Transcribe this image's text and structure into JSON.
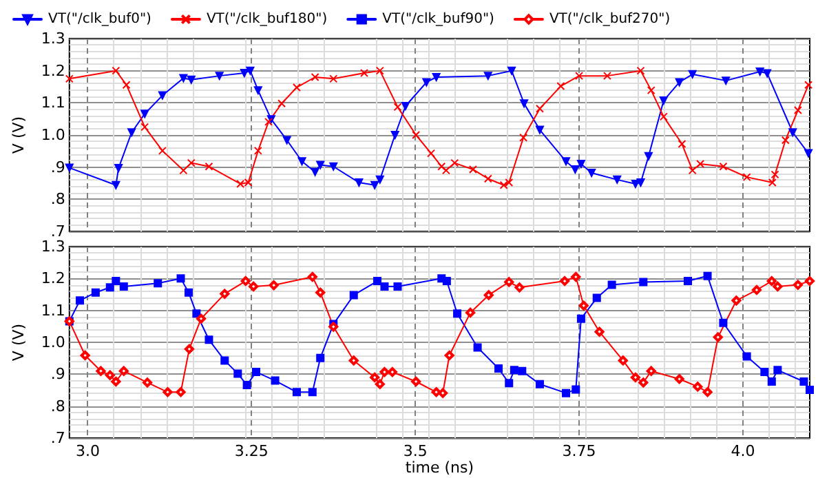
{
  "chart_data": [
    {
      "type": "line",
      "ylabel": "V (V)",
      "xlim": [
        2.972,
        4.102
      ],
      "ylim": [
        0.7,
        1.3
      ],
      "xticks": [
        3.0,
        3.25,
        3.5,
        3.75,
        4.0
      ],
      "yticks": [
        {
          "value": 0.7,
          "label": ".7"
        },
        {
          "value": 0.8,
          "label": ".8"
        },
        {
          "value": 0.9,
          "label": ".9"
        },
        {
          "value": 1.0,
          "label": "1.0"
        },
        1.1,
        1.2,
        1.3
      ],
      "tick_labels": "y",
      "grid": true,
      "legend": "top left",
      "line_style": "solid",
      "series": [
        {
          "name": "VT(\"/clk_buf0\")",
          "color": "#0000ff",
          "marker": "triangle",
          "x": [
            2.972,
            3.043,
            3.047,
            3.067,
            3.087,
            3.114,
            3.146,
            3.158,
            3.201,
            3.239,
            3.248,
            3.26,
            3.28,
            3.304,
            3.327,
            3.347,
            3.355,
            3.375,
            3.414,
            3.438,
            3.446,
            3.469,
            3.485,
            3.517,
            3.532,
            3.611,
            3.647,
            3.666,
            3.69,
            3.73,
            3.744,
            3.753,
            3.769,
            3.808,
            3.836,
            3.844,
            3.856,
            3.879,
            3.903,
            3.923,
            3.974,
            4.026,
            4.037,
            4.076,
            4.1
          ],
          "values": [
            0.898,
            0.844,
            0.897,
            1.008,
            1.066,
            1.123,
            1.177,
            1.172,
            1.184,
            1.193,
            1.2,
            1.139,
            1.049,
            0.984,
            0.918,
            0.885,
            0.907,
            0.902,
            0.852,
            0.844,
            0.861,
            1.0,
            1.09,
            1.164,
            1.18,
            1.184,
            1.2,
            1.098,
            1.016,
            0.918,
            0.893,
            0.91,
            0.882,
            0.861,
            0.848,
            0.852,
            0.934,
            1.107,
            1.164,
            1.189,
            1.169,
            1.197,
            1.192,
            1.008,
            0.943
          ]
        },
        {
          "name": "VT(\"/clk_buf180\")",
          "color": "#ff0000",
          "marker": "cross",
          "x": [
            2.972,
            3.043,
            3.059,
            3.087,
            3.114,
            3.146,
            3.158,
            3.185,
            3.233,
            3.245,
            3.26,
            3.276,
            3.296,
            3.319,
            3.347,
            3.375,
            3.422,
            3.446,
            3.473,
            3.501,
            3.524,
            3.54,
            3.547,
            3.56,
            3.588,
            3.611,
            3.635,
            3.643,
            3.665,
            3.69,
            3.722,
            3.75,
            3.793,
            3.844,
            3.86,
            3.879,
            3.907,
            3.923,
            3.935,
            3.97,
            4.006,
            4.045,
            4.049,
            4.065,
            4.084,
            4.1
          ],
          "values": [
            1.175,
            1.2,
            1.156,
            1.025,
            0.951,
            0.89,
            0.913,
            0.902,
            0.848,
            0.852,
            0.951,
            1.041,
            1.098,
            1.148,
            1.18,
            1.175,
            1.193,
            1.2,
            1.087,
            1.0,
            0.943,
            0.902,
            0.89,
            0.913,
            0.893,
            0.864,
            0.844,
            0.852,
            0.992,
            1.082,
            1.152,
            1.184,
            1.184,
            1.2,
            1.139,
            1.057,
            0.972,
            0.89,
            0.91,
            0.902,
            0.869,
            0.852,
            0.877,
            0.984,
            1.077,
            1.156
          ]
        }
      ]
    },
    {
      "type": "line",
      "xlabel": "time (ns)",
      "ylabel": "V (V)",
      "xlim": [
        2.972,
        4.102
      ],
      "ylim": [
        0.7,
        1.3
      ],
      "xticks": [
        {
          "value": 3.0,
          "label": "3.0"
        },
        3.25,
        3.5,
        3.75,
        {
          "value": 4.0,
          "label": "4.0"
        }
      ],
      "yticks": [
        {
          "value": 0.7,
          "label": ".7"
        },
        {
          "value": 0.8,
          "label": ".8"
        },
        {
          "value": 0.9,
          "label": ".9"
        },
        {
          "value": 1.0,
          "label": "1.0"
        },
        1.1,
        1.2,
        1.3
      ],
      "grid": true,
      "legend": "top",
      "line_style": "solid",
      "series": [
        {
          "name": "VT(\"/clk_buf90\")",
          "color": "#0000ff",
          "marker": "square",
          "x": [
            2.972,
            2.988,
            3.012,
            3.034,
            3.043,
            3.055,
            3.107,
            3.142,
            3.154,
            3.166,
            3.185,
            3.209,
            3.229,
            3.243,
            3.257,
            3.286,
            3.319,
            3.343,
            3.355,
            3.375,
            3.406,
            3.442,
            3.453,
            3.473,
            3.54,
            3.548,
            3.564,
            3.595,
            3.627,
            3.643,
            3.651,
            3.663,
            3.69,
            3.73,
            3.745,
            3.753,
            3.777,
            3.8,
            3.848,
            3.916,
            3.946,
            3.97,
            4.006,
            4.033,
            4.044,
            4.053,
            4.093,
            4.102
          ],
          "values": [
            1.066,
            1.131,
            1.156,
            1.172,
            1.192,
            1.175,
            1.185,
            1.2,
            1.156,
            1.09,
            1.008,
            0.943,
            0.902,
            0.866,
            0.907,
            0.88,
            0.844,
            0.844,
            0.951,
            1.057,
            1.148,
            1.192,
            1.175,
            1.175,
            1.2,
            1.192,
            1.09,
            0.984,
            0.918,
            0.872,
            0.913,
            0.91,
            0.869,
            0.841,
            0.852,
            1.074,
            1.139,
            1.18,
            1.189,
            1.192,
            1.208,
            1.061,
            0.956,
            0.907,
            0.877,
            0.913,
            0.877,
            0.851
          ]
        },
        {
          "name": "VT(\"/clk_buf270\")",
          "color": "#ff0000",
          "marker": "diamond",
          "x": [
            2.972,
            2.996,
            3.02,
            3.034,
            3.043,
            3.055,
            3.091,
            3.122,
            3.142,
            3.155,
            3.173,
            3.209,
            3.241,
            3.253,
            3.284,
            3.343,
            3.355,
            3.375,
            3.406,
            3.438,
            3.446,
            3.453,
            3.465,
            3.501,
            3.532,
            3.542,
            3.552,
            3.584,
            3.612,
            3.643,
            3.659,
            3.728,
            3.745,
            3.757,
            3.781,
            3.817,
            3.836,
            3.848,
            3.86,
            3.903,
            3.931,
            3.946,
            3.962,
            3.99,
            4.021,
            4.044,
            4.053,
            4.084,
            4.102
          ],
          "values": [
            1.066,
            0.959,
            0.91,
            0.897,
            0.877,
            0.91,
            0.874,
            0.844,
            0.844,
            0.979,
            1.074,
            1.152,
            1.192,
            1.175,
            1.179,
            1.205,
            1.156,
            1.049,
            0.943,
            0.89,
            0.869,
            0.907,
            0.907,
            0.877,
            0.844,
            0.841,
            0.959,
            1.093,
            1.148,
            1.189,
            1.172,
            1.192,
            1.205,
            1.115,
            1.033,
            0.943,
            0.89,
            0.874,
            0.91,
            0.885,
            0.861,
            0.844,
            1.016,
            1.131,
            1.164,
            1.192,
            1.175,
            1.18,
            1.192
          ]
        }
      ]
    }
  ]
}
